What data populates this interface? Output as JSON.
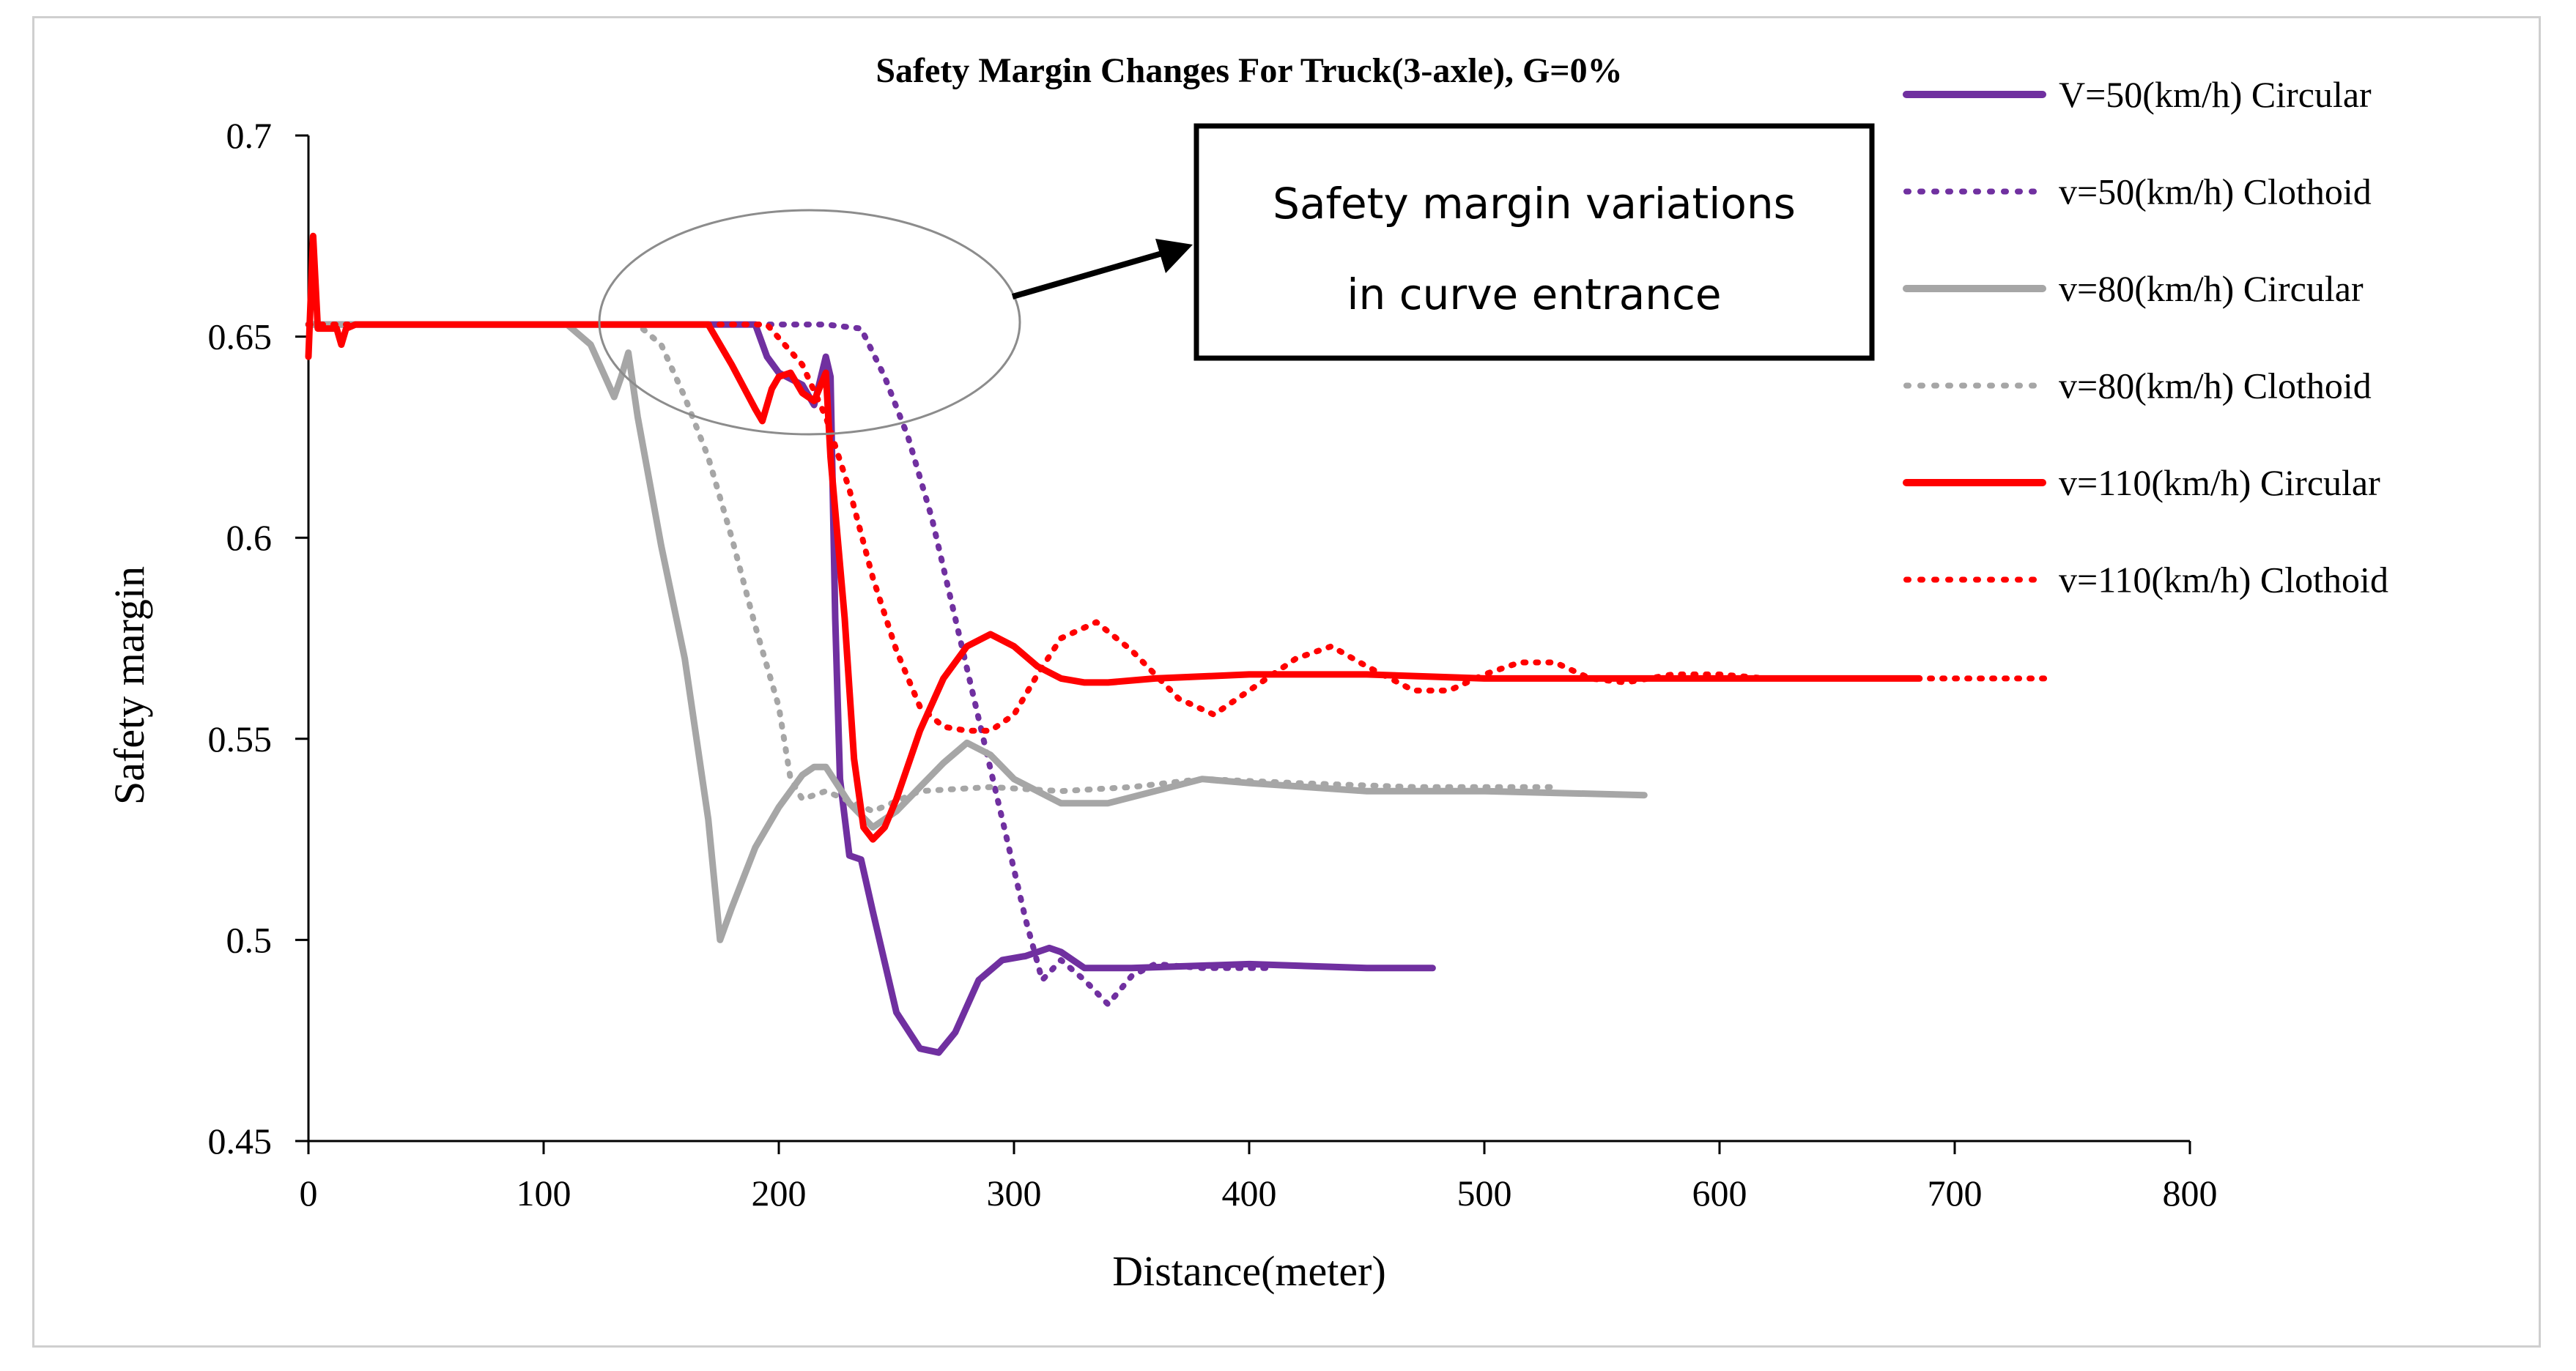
{
  "chart_data": {
    "type": "line",
    "title": "Safety Margin Changes For Truck(3-axle), G=0%",
    "xlabel": "Distance(meter)",
    "ylabel": "Safety margin",
    "xlim": [
      0,
      800
    ],
    "ylim": [
      0.45,
      0.7
    ],
    "xticks": [
      "0",
      "100",
      "200",
      "300",
      "400",
      "500",
      "600",
      "700",
      "800"
    ],
    "yticks": [
      "0.45",
      "0.5",
      "0.55",
      "0.6",
      "0.65",
      "0.7"
    ],
    "grid": false,
    "legend_position": "right",
    "annotation": {
      "lines": [
        "Safety margin variations",
        "in curve entrance"
      ]
    },
    "series": [
      {
        "name": "V=50(km/h) Circular",
        "color": "#7030A0",
        "style": "solid",
        "x": [
          0,
          100,
          190,
          195,
          200,
          210,
          215,
          220,
          222,
          224,
          226,
          230,
          235,
          240,
          250,
          260,
          268,
          275,
          285,
          295,
          305,
          315,
          320,
          330,
          350,
          400,
          450,
          478
        ],
        "y": [
          0.653,
          0.653,
          0.653,
          0.645,
          0.641,
          0.638,
          0.633,
          0.645,
          0.64,
          0.58,
          0.54,
          0.521,
          0.52,
          0.507,
          0.482,
          0.473,
          0.472,
          0.477,
          0.49,
          0.495,
          0.496,
          0.498,
          0.497,
          0.493,
          0.493,
          0.494,
          0.493,
          0.493
        ]
      },
      {
        "name": "v=50(km/h) Clothoid",
        "color": "#7030A0",
        "style": "dotted",
        "x": [
          0,
          100,
          200,
          220,
          235,
          245,
          255,
          265,
          275,
          285,
          295,
          305,
          312,
          320,
          330,
          340,
          350,
          360,
          380,
          410
        ],
        "y": [
          0.653,
          0.653,
          0.653,
          0.653,
          0.652,
          0.64,
          0.625,
          0.605,
          0.58,
          0.555,
          0.53,
          0.505,
          0.49,
          0.495,
          0.49,
          0.484,
          0.491,
          0.494,
          0.493,
          0.493
        ]
      },
      {
        "name": "v=80(km/h) Circular",
        "color": "#A6A6A6",
        "style": "solid",
        "x": [
          0,
          100,
          110,
          120,
          130,
          133,
          136,
          140,
          150,
          160,
          170,
          175,
          180,
          190,
          200,
          210,
          215,
          220,
          230,
          240,
          250,
          260,
          270,
          280,
          290,
          300,
          320,
          340,
          380,
          400,
          450,
          500,
          568
        ],
        "y": [
          0.653,
          0.653,
          0.653,
          0.648,
          0.635,
          0.64,
          0.646,
          0.63,
          0.598,
          0.57,
          0.53,
          0.5,
          0.508,
          0.523,
          0.533,
          0.541,
          0.543,
          0.543,
          0.534,
          0.528,
          0.532,
          0.538,
          0.544,
          0.549,
          0.546,
          0.54,
          0.534,
          0.534,
          0.54,
          0.539,
          0.537,
          0.537,
          0.536
        ]
      },
      {
        "name": "v=80(km/h) Clothoid",
        "color": "#A6A6A6",
        "style": "dotted",
        "x": [
          0,
          100,
          140,
          150,
          160,
          170,
          180,
          190,
          200,
          205,
          210,
          220,
          240,
          260,
          290,
          320,
          350,
          380,
          420,
          470,
          530
        ],
        "y": [
          0.653,
          0.653,
          0.653,
          0.648,
          0.635,
          0.62,
          0.6,
          0.578,
          0.558,
          0.54,
          0.535,
          0.537,
          0.532,
          0.537,
          0.538,
          0.537,
          0.538,
          0.54,
          0.539,
          0.538,
          0.538
        ]
      },
      {
        "name": "v=110(km/h) Circular",
        "color": "#FF0000",
        "style": "solid",
        "x": [
          0,
          2,
          4,
          6,
          8,
          10,
          12,
          14,
          16,
          20,
          100,
          170,
          180,
          190,
          193,
          197,
          200,
          205,
          210,
          215,
          220,
          222,
          228,
          232,
          236,
          240,
          245,
          250,
          260,
          270,
          280,
          290,
          300,
          310,
          320,
          330,
          340,
          360,
          400,
          450,
          500,
          550,
          600,
          650,
          685
        ],
        "y": [
          0.645,
          0.675,
          0.652,
          0.652,
          0.652,
          0.652,
          0.652,
          0.648,
          0.652,
          0.653,
          0.653,
          0.653,
          0.643,
          0.632,
          0.629,
          0.637,
          0.64,
          0.641,
          0.636,
          0.634,
          0.641,
          0.62,
          0.58,
          0.545,
          0.528,
          0.525,
          0.528,
          0.535,
          0.552,
          0.565,
          0.573,
          0.576,
          0.573,
          0.568,
          0.565,
          0.564,
          0.564,
          0.565,
          0.566,
          0.566,
          0.565,
          0.565,
          0.565,
          0.565,
          0.565
        ]
      },
      {
        "name": "v=110(km/h) Clothoid",
        "color": "#FF0000",
        "style": "dotted",
        "x": [
          0,
          100,
          195,
          210,
          220,
          230,
          240,
          250,
          260,
          270,
          280,
          290,
          300,
          310,
          320,
          335,
          350,
          370,
          385,
          400,
          420,
          435,
          450,
          470,
          485,
          500,
          515,
          530,
          545,
          560,
          580,
          600,
          620,
          640,
          680,
          710,
          742
        ],
        "y": [
          0.653,
          0.653,
          0.653,
          0.643,
          0.63,
          0.612,
          0.59,
          0.572,
          0.558,
          0.553,
          0.552,
          0.552,
          0.556,
          0.566,
          0.575,
          0.579,
          0.572,
          0.56,
          0.556,
          0.562,
          0.57,
          0.573,
          0.568,
          0.562,
          0.562,
          0.566,
          0.569,
          0.569,
          0.565,
          0.564,
          0.566,
          0.566,
          0.565,
          0.565,
          0.565,
          0.565,
          0.565
        ]
      }
    ]
  }
}
